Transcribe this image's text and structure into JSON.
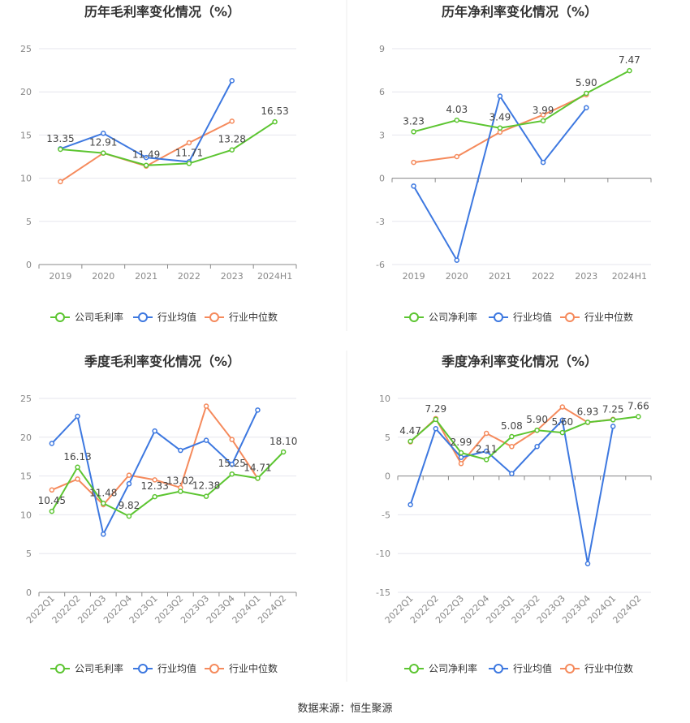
{
  "source_label": "数据来源：恒生聚源",
  "colors": {
    "company": "#5cc531",
    "industry_avg": "#3d78e0",
    "industry_median": "#f58a5c",
    "grid": "#e6e6ee",
    "axis": "#888888",
    "tick_text": "#888888",
    "label_text": "#444444",
    "title_text": "#333333"
  },
  "chart_data": [
    {
      "type": "line",
      "title": "历年毛利率变化情况（%）",
      "categories": [
        "2019",
        "2020",
        "2021",
        "2022",
        "2023",
        "2024H1"
      ],
      "ylim": [
        0,
        25
      ],
      "yticks": [
        0,
        5,
        10,
        15,
        20,
        25
      ],
      "grid": true,
      "legend_position": "bottom",
      "series": [
        {
          "name": "公司毛利率",
          "color_key": "company",
          "values": [
            13.35,
            12.91,
            11.49,
            11.71,
            13.28,
            16.53
          ],
          "labels": [
            "13.35",
            "12.91",
            "11.49",
            "11.71",
            "13.28",
            "16.53"
          ]
        },
        {
          "name": "行业均值",
          "color_key": "industry_avg",
          "values": [
            13.4,
            15.2,
            12.4,
            11.9,
            21.3,
            null
          ]
        },
        {
          "name": "行业中位数",
          "color_key": "industry_median",
          "values": [
            9.6,
            12.9,
            11.4,
            14.1,
            16.6,
            null
          ]
        }
      ]
    },
    {
      "type": "line",
      "title": "历年净利率变化情况（%）",
      "categories": [
        "2019",
        "2020",
        "2021",
        "2022",
        "2023",
        "2024H1"
      ],
      "ylim": [
        -6,
        9
      ],
      "yticks": [
        -6,
        -3,
        0,
        3,
        6,
        9
      ],
      "grid": true,
      "legend_position": "bottom",
      "series": [
        {
          "name": "公司净利率",
          "color_key": "company",
          "values": [
            3.23,
            4.03,
            3.49,
            3.99,
            5.9,
            7.47
          ],
          "labels": [
            "3.23",
            "4.03",
            "3.49",
            "3.99",
            "5.90",
            "7.47"
          ]
        },
        {
          "name": "行业均值",
          "color_key": "industry_avg",
          "values": [
            -0.55,
            -5.7,
            5.7,
            1.1,
            4.9,
            null
          ]
        },
        {
          "name": "行业中位数",
          "color_key": "industry_median",
          "values": [
            1.1,
            1.5,
            3.2,
            4.4,
            5.8,
            null
          ]
        }
      ]
    },
    {
      "type": "line",
      "title": "季度毛利率变化情况（%）",
      "categories": [
        "2022Q1",
        "2022Q2",
        "2022Q3",
        "2022Q4",
        "2023Q1",
        "2023Q2",
        "2023Q3",
        "2023Q4",
        "2024Q1",
        "2024Q2"
      ],
      "ylim": [
        0,
        25
      ],
      "yticks": [
        0,
        5,
        10,
        15,
        20,
        25
      ],
      "grid": true,
      "legend_position": "bottom",
      "series": [
        {
          "name": "公司毛利率",
          "color_key": "company",
          "values": [
            10.45,
            16.13,
            11.48,
            9.82,
            12.33,
            13.02,
            12.38,
            15.25,
            14.71,
            18.1
          ],
          "labels": [
            "10.45",
            "16.13",
            "11.48",
            "9.82",
            "12.33",
            "13.02",
            "12.38",
            "15.25",
            "14.71",
            "18.10"
          ]
        },
        {
          "name": "行业均值",
          "color_key": "industry_avg",
          "values": [
            19.2,
            22.7,
            7.5,
            14.0,
            20.8,
            18.3,
            19.6,
            16.5,
            23.5,
            null
          ]
        },
        {
          "name": "行业中位数",
          "color_key": "industry_median",
          "values": [
            13.2,
            14.6,
            11.3,
            15.1,
            14.5,
            13.5,
            24.0,
            19.7,
            14.7,
            null
          ]
        }
      ]
    },
    {
      "type": "line",
      "title": "季度净利率变化情况（%）",
      "categories": [
        "2022Q1",
        "2022Q2",
        "2022Q3",
        "2022Q4",
        "2023Q1",
        "2023Q2",
        "2023Q3",
        "2023Q4",
        "2024Q1",
        "2024Q2"
      ],
      "ylim": [
        -15,
        10
      ],
      "yticks": [
        -15,
        -10,
        -5,
        0,
        5,
        10
      ],
      "grid": true,
      "legend_position": "bottom",
      "series": [
        {
          "name": "公司净利率",
          "color_key": "company",
          "values": [
            4.47,
            7.29,
            2.99,
            2.11,
            5.08,
            5.9,
            5.6,
            6.93,
            7.25,
            7.66
          ],
          "labels": [
            "4.47",
            "7.29",
            "2.99",
            "2.11",
            "5.08",
            "5.90",
            "5.60",
            "6.93",
            "7.25",
            "7.66"
          ]
        },
        {
          "name": "行业均值",
          "color_key": "industry_avg",
          "values": [
            -3.7,
            6.1,
            2.4,
            3.2,
            0.3,
            3.8,
            7.2,
            -11.3,
            6.4,
            null
          ]
        },
        {
          "name": "行业中位数",
          "color_key": "industry_median",
          "values": [
            4.4,
            7.4,
            1.6,
            5.5,
            3.8,
            5.9,
            8.9,
            6.9,
            7.3,
            null
          ]
        }
      ]
    }
  ]
}
